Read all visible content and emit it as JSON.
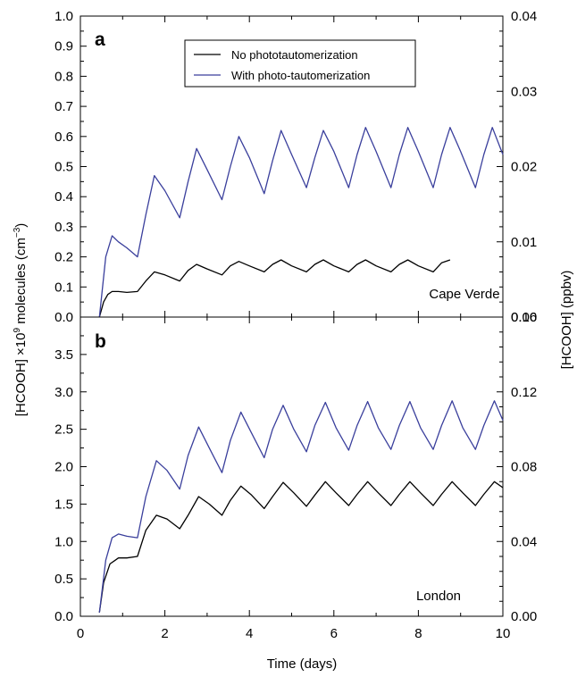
{
  "chart_data": {
    "type": "line",
    "xlabel": "Time (days)",
    "ylabel_left": [
      "[HCOOH] ×10",
      "9",
      " molecules (cm",
      "−3",
      ")"
    ],
    "ylabel_right": "[HCOOH]  (ppbv)",
    "x_ticks": [
      "0",
      "2",
      "4",
      "6",
      "8",
      "10"
    ],
    "xlim": [
      0,
      10
    ],
    "legend": {
      "placement": "top-center of panel a",
      "entries": [
        "No phototautomerization",
        "With photo-tautomerization"
      ]
    },
    "colors": {
      "no_photo": "#000000",
      "with_photo": "#3a3f9c"
    },
    "panels": [
      {
        "letter": "a",
        "location": "Cape Verde",
        "ylim": [
          0,
          1.0
        ],
        "y_ticks": [
          "0.0",
          "0.1",
          "0.2",
          "0.3",
          "0.4",
          "0.5",
          "0.6",
          "0.7",
          "0.8",
          "0.9",
          "1.0"
        ],
        "ylim_right": [
          0,
          0.04
        ],
        "y_ticks_right": [
          "0.00",
          "0.01",
          "0.02",
          "0.03",
          "0.04"
        ],
        "series": [
          {
            "name": "No phototautomerization",
            "color": "#000000",
            "x": [
              0.45,
              0.55,
              0.65,
              0.75,
              0.9,
              1.1,
              1.35,
              1.55,
              1.75,
              2.0,
              2.35,
              2.55,
              2.75,
              3.0,
              3.35,
              3.55,
              3.75,
              4.0,
              4.35,
              4.55,
              4.75,
              5.0,
              5.35,
              5.55,
              5.75,
              6.0,
              6.35,
              6.55,
              6.75,
              7.0,
              7.35,
              7.55,
              7.75,
              8.0,
              8.35,
              8.55,
              8.75
            ],
            "y": [
              0.0,
              0.05,
              0.075,
              0.085,
              0.085,
              0.082,
              0.085,
              0.12,
              0.15,
              0.14,
              0.12,
              0.155,
              0.175,
              0.16,
              0.14,
              0.17,
              0.185,
              0.17,
              0.15,
              0.175,
              0.19,
              0.17,
              0.15,
              0.175,
              0.19,
              0.17,
              0.15,
              0.175,
              0.19,
              0.17,
              0.15,
              0.175,
              0.19,
              0.17,
              0.15,
              0.18,
              0.19
            ]
          },
          {
            "name": "With photo-tautomerization",
            "color": "#3a3f9c",
            "x": [
              0.45,
              0.6,
              0.75,
              0.9,
              1.1,
              1.35,
              1.55,
              1.75,
              2.0,
              2.35,
              2.55,
              2.75,
              3.0,
              3.35,
              3.55,
              3.75,
              4.0,
              4.35,
              4.55,
              4.75,
              5.0,
              5.35,
              5.55,
              5.75,
              6.0,
              6.35,
              6.55,
              6.75,
              7.0,
              7.35,
              7.55,
              7.75,
              8.0,
              8.35,
              8.55,
              8.75,
              9.0,
              9.35,
              9.55,
              9.75,
              10.0
            ],
            "y": [
              0.0,
              0.2,
              0.27,
              0.25,
              0.23,
              0.2,
              0.34,
              0.47,
              0.42,
              0.33,
              0.45,
              0.56,
              0.49,
              0.39,
              0.5,
              0.6,
              0.53,
              0.41,
              0.52,
              0.62,
              0.54,
              0.43,
              0.53,
              0.62,
              0.55,
              0.43,
              0.54,
              0.63,
              0.55,
              0.43,
              0.54,
              0.63,
              0.55,
              0.43,
              0.54,
              0.63,
              0.55,
              0.43,
              0.54,
              0.63,
              0.54
            ]
          }
        ]
      },
      {
        "letter": "b",
        "location": "London",
        "ylim": [
          0,
          4.0
        ],
        "y_ticks": [
          "0.0",
          "0.5",
          "1.0",
          "1.5",
          "2.0",
          "2.5",
          "3.0",
          "3.5"
        ],
        "ylim_right": [
          0,
          0.16
        ],
        "y_ticks_right": [
          "0.00",
          "0.04",
          "0.08",
          "0.12",
          "0.16"
        ],
        "series": [
          {
            "name": "No phototautomerization",
            "color": "#000000",
            "x": [
              0.45,
              0.55,
              0.7,
              0.9,
              1.1,
              1.35,
              1.55,
              1.8,
              2.05,
              2.35,
              2.55,
              2.8,
              3.05,
              3.35,
              3.55,
              3.8,
              4.05,
              4.35,
              4.55,
              4.8,
              5.05,
              5.35,
              5.55,
              5.8,
              6.05,
              6.35,
              6.55,
              6.8,
              7.05,
              7.35,
              7.55,
              7.8,
              8.05,
              8.35,
              8.55,
              8.8,
              9.05,
              9.35,
              9.55,
              9.8,
              10.0
            ],
            "y": [
              0.05,
              0.45,
              0.7,
              0.78,
              0.78,
              0.8,
              1.15,
              1.35,
              1.3,
              1.17,
              1.35,
              1.6,
              1.5,
              1.35,
              1.55,
              1.74,
              1.62,
              1.44,
              1.6,
              1.79,
              1.65,
              1.47,
              1.62,
              1.8,
              1.65,
              1.48,
              1.63,
              1.8,
              1.65,
              1.48,
              1.63,
              1.8,
              1.65,
              1.48,
              1.63,
              1.8,
              1.65,
              1.48,
              1.63,
              1.8,
              1.72
            ]
          },
          {
            "name": "With photo-tautomerization",
            "color": "#3a3f9c",
            "x": [
              0.45,
              0.6,
              0.75,
              0.9,
              1.1,
              1.35,
              1.55,
              1.8,
              2.05,
              2.35,
              2.55,
              2.8,
              3.05,
              3.35,
              3.55,
              3.8,
              4.05,
              4.35,
              4.55,
              4.8,
              5.05,
              5.35,
              5.55,
              5.8,
              6.05,
              6.35,
              6.55,
              6.8,
              7.05,
              7.35,
              7.55,
              7.8,
              8.05,
              8.35,
              8.55,
              8.8,
              9.05,
              9.35,
              9.55,
              9.8,
              10.0
            ],
            "y": [
              0.05,
              0.75,
              1.05,
              1.1,
              1.07,
              1.05,
              1.6,
              2.08,
              1.95,
              1.7,
              2.15,
              2.53,
              2.25,
              1.92,
              2.35,
              2.73,
              2.45,
              2.12,
              2.5,
              2.82,
              2.5,
              2.2,
              2.55,
              2.86,
              2.52,
              2.22,
              2.55,
              2.87,
              2.52,
              2.23,
              2.55,
              2.87,
              2.52,
              2.23,
              2.55,
              2.88,
              2.52,
              2.23,
              2.55,
              2.88,
              2.62
            ]
          }
        ]
      }
    ]
  }
}
